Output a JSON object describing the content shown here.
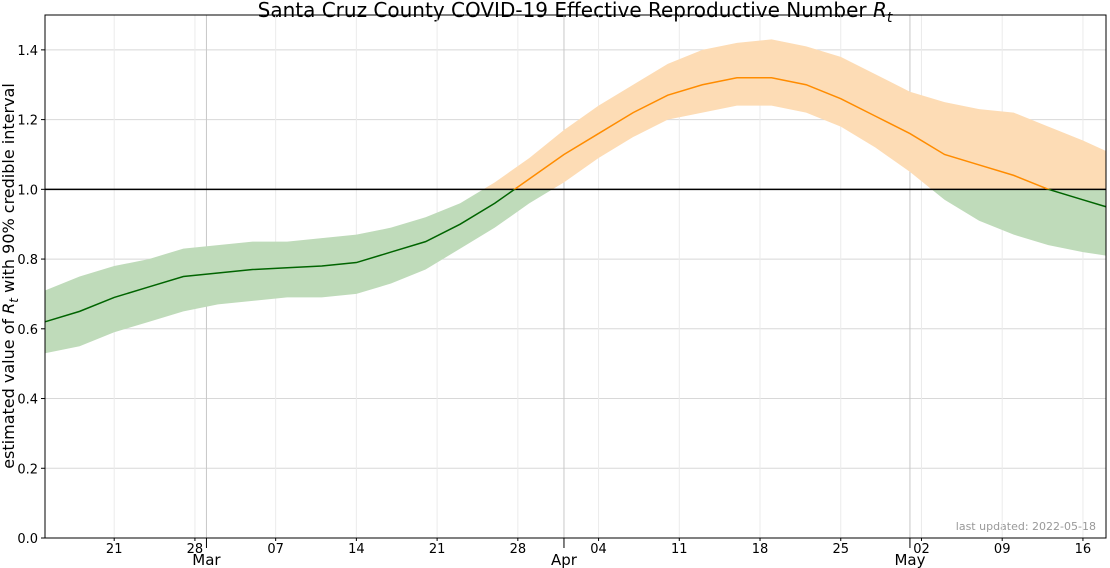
{
  "chart_data": {
    "type": "line",
    "title": "Santa Cruz County COVID-19 Effective Reproductive Number",
    "title_symbol": "R",
    "title_subscript": "t",
    "ylabel": {
      "before": "estimated value of",
      "symbol": "R",
      "subscript": "t",
      "after": "with 90% credible interval"
    },
    "annotation": "last updated: 2022-05-18",
    "x": [
      "02-15",
      "02-18",
      "02-21",
      "02-24",
      "02-27",
      "03-02",
      "03-05",
      "03-08",
      "03-11",
      "03-14",
      "03-17",
      "03-20",
      "03-23",
      "03-26",
      "03-29",
      "04-01",
      "04-04",
      "04-07",
      "04-10",
      "04-13",
      "04-16",
      "04-19",
      "04-22",
      "04-25",
      "04-28",
      "05-01",
      "05-04",
      "05-07",
      "05-10",
      "05-13",
      "05-16",
      "05-18"
    ],
    "values": [
      0.62,
      0.65,
      0.69,
      0.72,
      0.75,
      0.76,
      0.77,
      0.775,
      0.78,
      0.79,
      0.82,
      0.85,
      0.9,
      0.96,
      1.03,
      1.1,
      1.16,
      1.22,
      1.27,
      1.3,
      1.32,
      1.32,
      1.3,
      1.26,
      1.21,
      1.16,
      1.1,
      1.07,
      1.04,
      1.0,
      0.97,
      0.95
    ],
    "upper": [
      0.71,
      0.75,
      0.78,
      0.8,
      0.83,
      0.84,
      0.85,
      0.85,
      0.86,
      0.87,
      0.89,
      0.92,
      0.96,
      1.02,
      1.09,
      1.17,
      1.24,
      1.3,
      1.36,
      1.4,
      1.42,
      1.43,
      1.41,
      1.38,
      1.33,
      1.28,
      1.25,
      1.23,
      1.22,
      1.18,
      1.14,
      1.11
    ],
    "lower": [
      0.53,
      0.55,
      0.59,
      0.62,
      0.65,
      0.67,
      0.68,
      0.69,
      0.69,
      0.7,
      0.73,
      0.77,
      0.83,
      0.89,
      0.96,
      1.02,
      1.09,
      1.15,
      1.2,
      1.22,
      1.24,
      1.24,
      1.22,
      1.18,
      1.12,
      1.05,
      0.97,
      0.91,
      0.87,
      0.84,
      0.82,
      0.81
    ],
    "threshold": 1,
    "color_above": "#ff8c00",
    "color_below": "#006400",
    "band_above": "#fddcb5",
    "band_below": "#bfdbba",
    "xlim": [
      "02-15",
      "05-18"
    ],
    "xticks": [
      {
        "value": "02-21",
        "label": "21"
      },
      {
        "value": "02-28",
        "label": "28"
      },
      {
        "value": "03-07",
        "label": "07"
      },
      {
        "value": "03-14",
        "label": "14"
      },
      {
        "value": "03-21",
        "label": "21"
      },
      {
        "value": "03-28",
        "label": "28"
      },
      {
        "value": "04-04",
        "label": "04"
      },
      {
        "value": "04-11",
        "label": "11"
      },
      {
        "value": "04-18",
        "label": "18"
      },
      {
        "value": "04-25",
        "label": "25"
      },
      {
        "value": "05-02",
        "label": "02"
      },
      {
        "value": "05-09",
        "label": "09"
      },
      {
        "value": "05-16",
        "label": "16"
      }
    ],
    "xticks_major": [
      {
        "value": "03-01",
        "label": "Mar"
      },
      {
        "value": "04-01",
        "label": "Apr"
      },
      {
        "value": "05-01",
        "label": "May"
      }
    ],
    "ylim": [
      0,
      1.5
    ],
    "yticks": [
      {
        "value": 0,
        "label": "0.0"
      },
      0.2,
      0.4,
      0.6,
      0.8,
      {
        "value": 1,
        "label": "1.0"
      },
      1.2,
      1.4
    ],
    "grid": true
  }
}
